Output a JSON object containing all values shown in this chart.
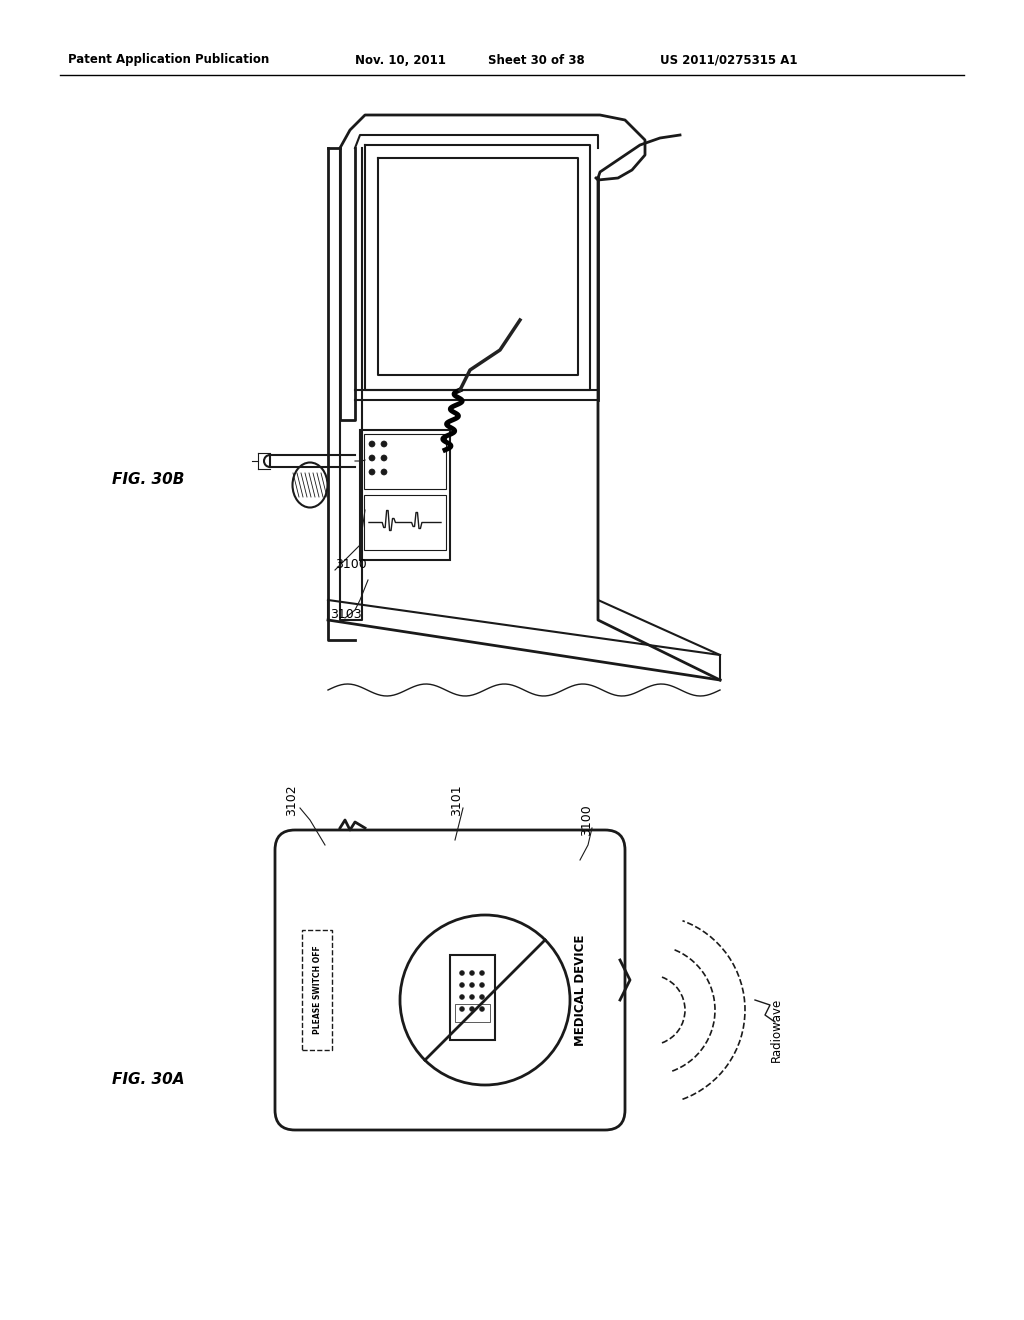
{
  "bg_color": "#ffffff",
  "header_text": "Patent Application Publication",
  "header_date": "Nov. 10, 2011",
  "header_sheet": "Sheet 30 of 38",
  "header_patent": "US 2011/0275315 A1",
  "fig30a_label": "FIG. 30A",
  "fig30b_label": "FIG. 30B",
  "label_3100_top": "3100",
  "label_3103": "3103",
  "label_3102": "3102",
  "label_3101": "3101",
  "label_3100_bot": "3100",
  "label_radiowave": "Radiowave",
  "text_please_switch_off": "PLEASE SWITCH OFF",
  "text_medical_device": "MEDICAL DEVICE"
}
